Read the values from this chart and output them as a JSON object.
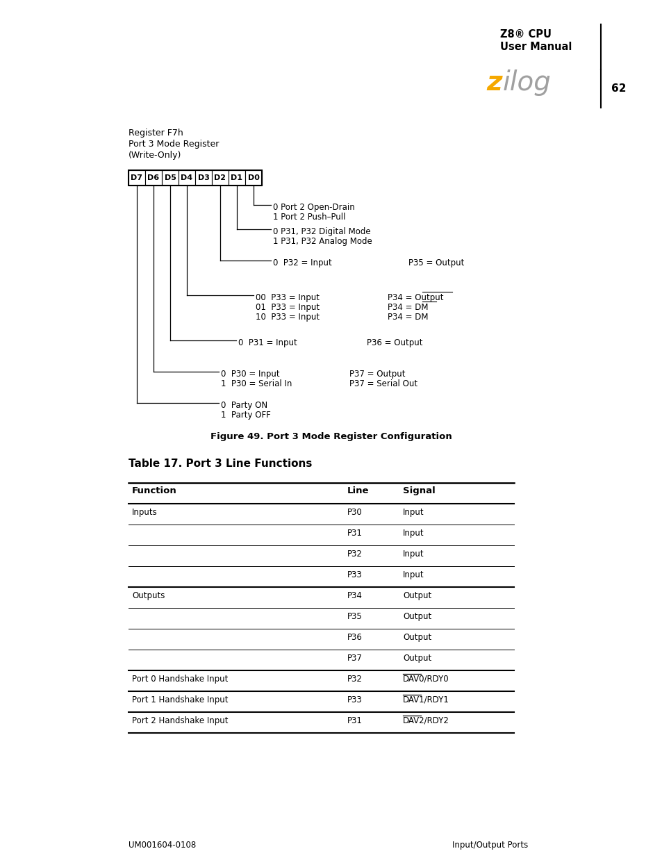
{
  "page_num": "62",
  "header_title_line1": "Z8® CPU",
  "header_title_line2": "User Manual",
  "zilog_z_color": "#F5A800",
  "zilog_ilog_color": "#A0A0A0",
  "reg_label_lines": [
    "Register F7h",
    "Port 3 Mode Register",
    "(Write-Only)"
  ],
  "reg_bits": [
    "D7",
    "D6",
    "D5",
    "D4",
    "D3",
    "D2",
    "D1",
    "D0"
  ],
  "figure_caption": "Figure 49. Port 3 Mode Register Configuration",
  "table_title": "Table 17. Port 3 Line Functions",
  "table_headers": [
    "Function",
    "Line",
    "Signal"
  ],
  "table_rows": [
    [
      "Inputs",
      "P30",
      "Input",
      false
    ],
    [
      "",
      "P31",
      "Input",
      false
    ],
    [
      "",
      "P32",
      "Input",
      false
    ],
    [
      "",
      "P33",
      "Input",
      true
    ],
    [
      "Outputs",
      "P34",
      "Output",
      false
    ],
    [
      "",
      "P35",
      "Output",
      false
    ],
    [
      "",
      "P36",
      "Output",
      false
    ],
    [
      "",
      "P37",
      "Output",
      true
    ],
    [
      "Port 0 Handshake Input",
      "P32",
      "DAV0/RDY0",
      true
    ],
    [
      "Port 1 Handshake Input",
      "P33",
      "DAV1/RDY1",
      true
    ],
    [
      "Port 2 Handshake Input",
      "P31",
      "DAV2/RDY2",
      true
    ]
  ],
  "footer_left": "UM001604-0108",
  "footer_right": "Input/Output Ports"
}
